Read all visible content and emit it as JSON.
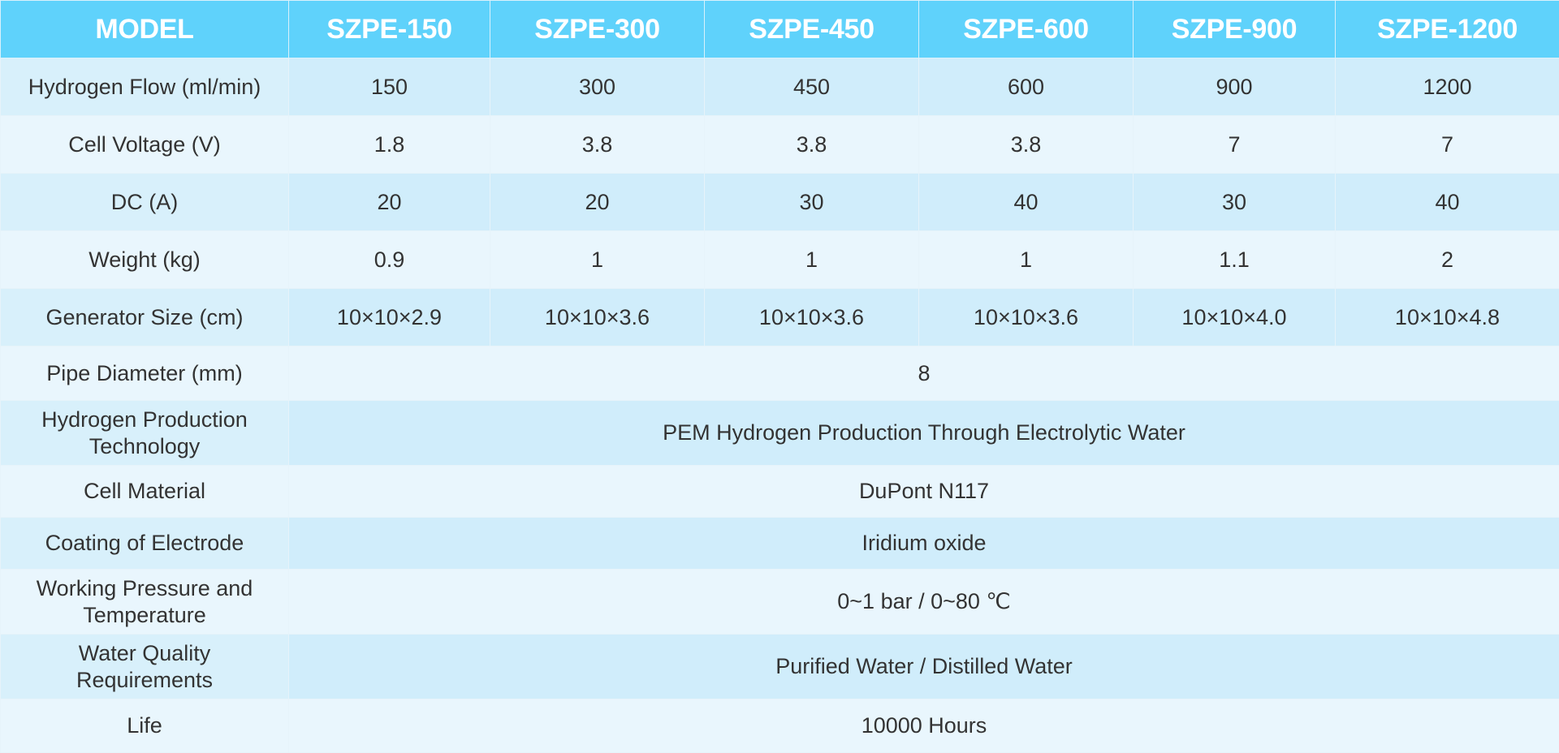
{
  "header": {
    "model": "MODEL",
    "models": [
      "SZPE-150",
      "SZPE-300",
      "SZPE-450",
      "SZPE-600",
      "SZPE-900",
      "SZPE-1200"
    ]
  },
  "rows": {
    "hydrogen_flow": {
      "label": "Hydrogen Flow (ml/min)",
      "values": [
        "150",
        "300",
        "450",
        "600",
        "900",
        "1200"
      ]
    },
    "cell_voltage": {
      "label": "Cell Voltage (V)",
      "values": [
        "1.8",
        "3.8",
        "3.8",
        "3.8",
        "7",
        "7"
      ]
    },
    "dc": {
      "label": "DC (A)",
      "values": [
        "20",
        "20",
        "30",
        "40",
        "30",
        "40"
      ]
    },
    "weight": {
      "label": "Weight (kg)",
      "values": [
        "0.9",
        "1",
        "1",
        "1",
        "1.1",
        "2"
      ]
    },
    "generator_size": {
      "label": "Generator Size (cm)",
      "values": [
        "10×10×2.9",
        "10×10×3.6",
        "10×10×3.6",
        "10×10×3.6",
        "10×10×4.0",
        "10×10×4.8"
      ]
    },
    "pipe_diameter": {
      "label": "Pipe Diameter (mm)",
      "value": "8"
    },
    "production_technology": {
      "label_line1": "Hydrogen Production",
      "label_line2": "Technology",
      "value": "PEM Hydrogen Production Through Electrolytic Water"
    },
    "cell_material": {
      "label": "Cell Material",
      "value": "DuPont N117"
    },
    "electrode_coating": {
      "label": "Coating of Electrode",
      "value": "Iridium oxide"
    },
    "working_conditions": {
      "label_line1": "Working Pressure and",
      "label_line2": "Temperature",
      "value": "0~1 bar / 0~80 ℃"
    },
    "water_quality": {
      "label_line1": "Water Quality",
      "label_line2": "Requirements",
      "value": "Purified Water / Distilled Water"
    },
    "life": {
      "label": "Life",
      "value": "10000 Hours"
    }
  }
}
